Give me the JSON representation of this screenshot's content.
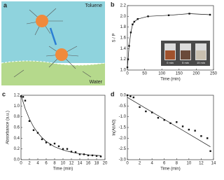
{
  "diagram": {
    "panel_label": "a",
    "top_phase": "Toluene",
    "bottom_phase": "Water"
  },
  "chart_data": [
    {
      "type": "scatter",
      "panel_label": "b",
      "x_label": "Time (min)",
      "y_label": "S / P",
      "xlim": [
        0,
        250
      ],
      "xticks": [
        0,
        50,
        100,
        150,
        200,
        250
      ],
      "ylim": [
        1.0,
        2.2
      ],
      "yticks": [
        {
          "value": 1.0,
          "label": "1.0"
        },
        1.2,
        1.4,
        1.6,
        1.8,
        {
          "value": 2.0,
          "label": "2.0"
        },
        2.2
      ],
      "inset_labels": [
        "0 min",
        "5 min",
        "15 min"
      ],
      "series": [
        {
          "style": "points",
          "color": "#111",
          "x": [
            0,
            2,
            5,
            10,
            15,
            20,
            30,
            60,
            120,
            180,
            240
          ],
          "values": [
            1.05,
            1.2,
            1.45,
            1.7,
            1.85,
            1.9,
            1.95,
            2.0,
            2.02,
            2.05,
            2.03
          ]
        },
        {
          "style": "line",
          "color": "#111",
          "x": [
            0,
            2,
            5,
            10,
            15,
            20,
            30,
            60,
            120,
            180,
            240
          ],
          "values": [
            1.05,
            1.2,
            1.45,
            1.7,
            1.85,
            1.9,
            1.95,
            2.0,
            2.02,
            2.05,
            2.03
          ]
        }
      ]
    },
    {
      "type": "scatter",
      "panel_label": "c",
      "x_label": "Time (min)",
      "y_label": "Absorbance (a.u.)",
      "xlim": [
        0,
        20
      ],
      "xticks": [
        0,
        2,
        4,
        6,
        8,
        10,
        12,
        14,
        16,
        18,
        20
      ],
      "ylim": [
        0,
        1.2
      ],
      "yticks": [
        {
          "value": 0,
          "label": "0.0"
        },
        0.2,
        0.4,
        0.6,
        0.8,
        {
          "value": 1,
          "label": "1.0"
        },
        1.2
      ],
      "series": [
        {
          "style": "points",
          "color": "#111",
          "x": [
            0,
            0.5,
            1,
            2,
            3,
            4,
            5,
            6,
            7,
            8,
            9,
            10,
            11,
            12,
            13,
            14,
            15,
            16,
            17,
            18,
            19
          ],
          "values": [
            1.18,
            1.17,
            1.1,
            0.72,
            0.55,
            0.5,
            0.38,
            0.32,
            0.28,
            0.3,
            0.25,
            0.2,
            0.2,
            0.15,
            0.14,
            0.1,
            0.1,
            0.08,
            0.08,
            0.07,
            0.06
          ]
        },
        {
          "style": "line",
          "color": "#111",
          "x": [
            0,
            1,
            2,
            3,
            4,
            5,
            6,
            8,
            10,
            12,
            14,
            16,
            18,
            19
          ],
          "values": [
            1.2,
            0.95,
            0.76,
            0.61,
            0.5,
            0.41,
            0.34,
            0.24,
            0.18,
            0.14,
            0.11,
            0.09,
            0.08,
            0.075
          ]
        }
      ]
    },
    {
      "type": "scatter",
      "panel_label": "d",
      "x_label": "Time (min)",
      "y_label": "ln(At/A0)",
      "xlim": [
        0,
        14
      ],
      "xticks": [
        0,
        2,
        4,
        6,
        8,
        10,
        12,
        14
      ],
      "ylim": [
        -3,
        0
      ],
      "yticks": [
        {
          "value": -3,
          "label": "-3.0"
        },
        -2.5,
        {
          "value": -2,
          "label": "-2.0"
        },
        -1.5,
        {
          "value": -1,
          "label": "-1.0"
        },
        -0.5,
        {
          "value": 0,
          "label": "0.0"
        }
      ],
      "series": [
        {
          "style": "points",
          "color": "#111",
          "x": [
            0,
            0.5,
            1,
            2,
            3,
            4,
            5,
            6,
            7,
            8,
            9,
            10,
            11,
            12,
            13,
            13.5
          ],
          "values": [
            0,
            -0.05,
            -0.1,
            -0.55,
            -0.75,
            -0.8,
            -1.05,
            -1.15,
            -1.3,
            -1.25,
            -1.45,
            -1.6,
            -1.65,
            -1.9,
            -2.0,
            -2.6
          ]
        },
        {
          "style": "line",
          "color": "#111",
          "x": [
            0,
            13.5
          ],
          "values": [
            -0.1,
            -2.4
          ]
        }
      ]
    }
  ]
}
